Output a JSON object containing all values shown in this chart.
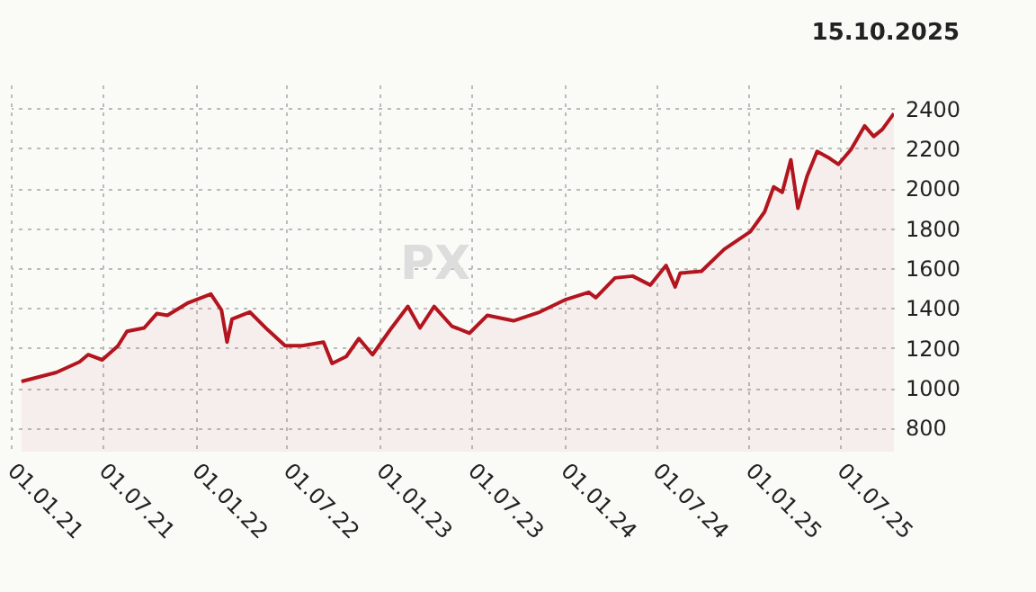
{
  "chart_data": {
    "type": "area",
    "title": "15.10.2025",
    "annotations": [
      "PX"
    ],
    "x": [
      "2021-01-22",
      "2021-04-01",
      "2021-05-17",
      "2021-06-03",
      "2021-07-01",
      "2021-08-01",
      "2021-08-19",
      "2021-09-22",
      "2021-10-17",
      "2021-11-07",
      "2021-12-18",
      "2022-02-01",
      "2022-02-22",
      "2022-03-05",
      "2022-03-15",
      "2022-04-19",
      "2022-05-24",
      "2022-06-28",
      "2022-08-01",
      "2022-09-12",
      "2022-09-29",
      "2022-10-27",
      "2022-11-21",
      "2022-12-18",
      "2023-01-22",
      "2023-02-26",
      "2023-03-22",
      "2023-04-19",
      "2023-05-24",
      "2023-06-28",
      "2023-08-02",
      "2023-09-23",
      "2023-11-14",
      "2024-01-05",
      "2024-02-19",
      "2024-03-04",
      "2024-04-11",
      "2024-05-16",
      "2024-06-20",
      "2024-07-21",
      "2024-08-08",
      "2024-08-18",
      "2024-09-29",
      "2024-11-13",
      "2025-01-04",
      "2025-02-01",
      "2025-02-19",
      "2025-03-08",
      "2025-03-25",
      "2025-04-08",
      "2025-04-26",
      "2025-05-16",
      "2025-06-10",
      "2025-06-27",
      "2025-07-22",
      "2025-08-18",
      "2025-09-05",
      "2025-09-22",
      "2025-10-15"
    ],
    "series": [
      {
        "color": "#b3151f",
        "values": [
          1032,
          1077,
          1130,
          1166,
          1140,
          1210,
          1283,
          1300,
          1372,
          1363,
          1426,
          1470,
          1390,
          1229,
          1345,
          1380,
          1292,
          1211,
          1211,
          1229,
          1122,
          1157,
          1247,
          1166,
          1291,
          1408,
          1300,
          1408,
          1309,
          1274,
          1363,
          1336,
          1380,
          1443,
          1479,
          1452,
          1551,
          1560,
          1515,
          1613,
          1506,
          1575,
          1584,
          1694,
          1783,
          1882,
          2007,
          1980,
          2143,
          1900,
          2060,
          2185,
          2150,
          2120,
          2194,
          2313,
          2260,
          2295,
          2375
        ]
      }
    ],
    "xlim": [
      "2021-01-01",
      "2025-10-15"
    ],
    "xticks": [
      {
        "value": "2021-01-01",
        "label": "01.01.21"
      },
      {
        "value": "2021-07-01",
        "label": "01.07.21"
      },
      {
        "value": "2022-01-01",
        "label": "01.01.22"
      },
      {
        "value": "2022-07-01",
        "label": "01.07.22"
      },
      {
        "value": "2023-01-01",
        "label": "01.01.23"
      },
      {
        "value": "2023-07-01",
        "label": "01.07.23"
      },
      {
        "value": "2024-01-01",
        "label": "01.01.24"
      },
      {
        "value": "2024-07-01",
        "label": "01.07.24"
      },
      {
        "value": "2025-01-01",
        "label": "01.01.25"
      },
      {
        "value": "2025-07-01",
        "label": "01.07.25"
      }
    ],
    "ylim": [
      680,
      2520
    ],
    "yticks": [
      800,
      1000,
      1200,
      1400,
      1600,
      1800,
      2000,
      2200,
      2400
    ],
    "grid": true
  }
}
